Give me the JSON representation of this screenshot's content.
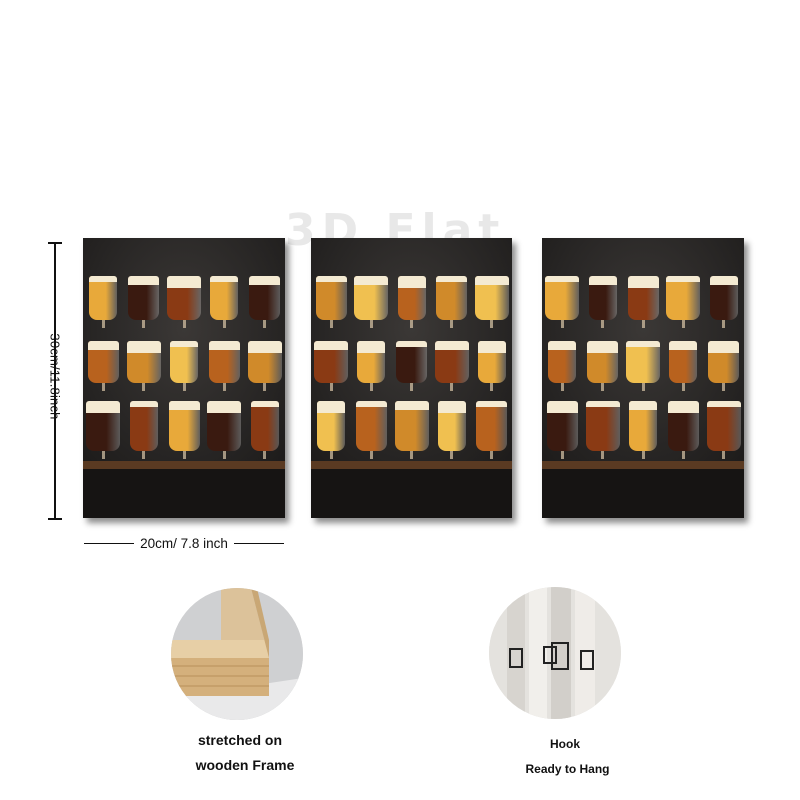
{
  "watermark": "3D Flat",
  "dimensions": {
    "height_label": "30cm/11.8inch",
    "width_label": "20cm/ 7.8 inch"
  },
  "panels": [
    {
      "name": "left-canvas-panel"
    },
    {
      "name": "middle-canvas-panel"
    },
    {
      "name": "right-canvas-panel"
    }
  ],
  "features": {
    "frame": {
      "line1": "stretched on",
      "line2": "wooden Frame"
    },
    "hook": {
      "line1": "Hook",
      "line2": "Ready to Hang"
    }
  },
  "colors": {
    "beer_light": "#e8a93a",
    "beer_amber": "#b8621e",
    "beer_dark": "#3a1a10",
    "foam": "#f4ead2",
    "shelf": "#5a3a22"
  }
}
